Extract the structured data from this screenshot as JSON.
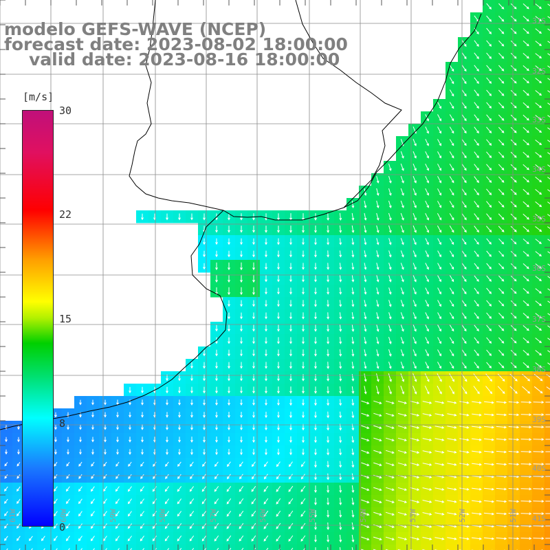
{
  "title": {
    "line1": "modelo GEFS-WAVE (NCEP)",
    "line2": "forecast date: 2023-08-02 18:00:00",
    "line3": "valid date: 2023-08-16 18:00:00"
  },
  "colorbar": {
    "unit": "[m/s]",
    "ticks": [
      "30",
      "22",
      "15",
      "8",
      "0"
    ],
    "min": 0,
    "max": 30,
    "colors": [
      "#0000ff",
      "#1a7aff",
      "#00ffff",
      "#00e070",
      "#00d000",
      "#ffff00",
      "#ffa000",
      "#ff0000",
      "#c0107a"
    ]
  },
  "graticule": {
    "lat_labels": [
      "31S",
      "32S",
      "33S",
      "34S",
      "35S",
      "36S",
      "37S",
      "38S",
      "39S",
      "40S",
      "41S"
    ],
    "lon_labels": [
      "61W",
      "60W",
      "59W",
      "58W",
      "57W",
      "56W",
      "55W",
      "54W",
      "53W",
      "52W",
      "51W"
    ]
  },
  "colors": {
    "land": "#ffffff",
    "coast": "#000000",
    "grid": "#808080",
    "arrow": "#ffffff"
  }
}
